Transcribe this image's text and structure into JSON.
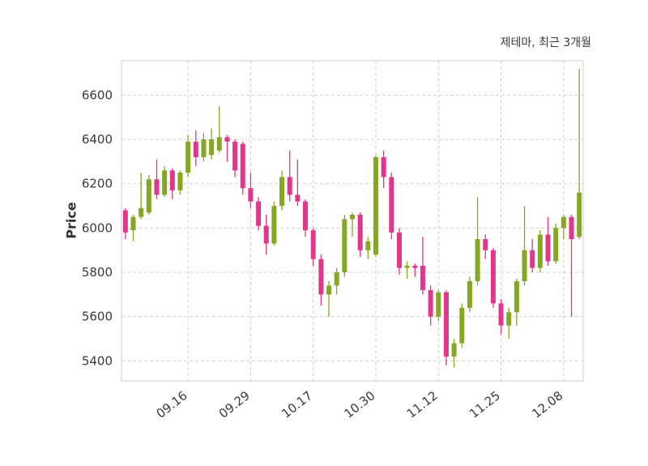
{
  "chart_data": {
    "type": "candlestick",
    "title": "제테마, 최근 3개월",
    "ylabel": "Price",
    "ylim": [
      5310,
      6755
    ],
    "y_ticks": [
      5400,
      5600,
      5800,
      6000,
      6200,
      6400,
      6600
    ],
    "x_ticks": [
      {
        "index": 8,
        "label": "09.16"
      },
      {
        "index": 16,
        "label": "09.29"
      },
      {
        "index": 24,
        "label": "10.17"
      },
      {
        "index": 32,
        "label": "10.30"
      },
      {
        "index": 40,
        "label": "11.12"
      },
      {
        "index": 48,
        "label": "11.25"
      },
      {
        "index": 56,
        "label": "12.08"
      }
    ],
    "grid": true,
    "up_color": "#84a821",
    "down_color": "#e0368c",
    "grid_color": "#d0d0d0",
    "spine_color": "#cccccc",
    "tick_color": "#3a3a3a",
    "candles": [
      [
        6080,
        6090,
        5950,
        5980
      ],
      [
        5990,
        6060,
        5940,
        6050
      ],
      [
        6050,
        6250,
        6040,
        6090
      ],
      [
        6070,
        6240,
        6060,
        6220
      ],
      [
        6220,
        6310,
        6130,
        6150
      ],
      [
        6150,
        6280,
        6140,
        6260
      ],
      [
        6260,
        6270,
        6130,
        6170
      ],
      [
        6170,
        6260,
        6150,
        6250
      ],
      [
        6250,
        6420,
        6230,
        6390
      ],
      [
        6390,
        6440,
        6280,
        6320
      ],
      [
        6320,
        6430,
        6300,
        6400
      ],
      [
        6330,
        6450,
        6310,
        6400
      ],
      [
        6350,
        6550,
        6340,
        6410
      ],
      [
        6410,
        6420,
        6300,
        6390
      ],
      [
        6390,
        6400,
        6230,
        6260
      ],
      [
        6380,
        6390,
        6150,
        6180
      ],
      [
        6180,
        6250,
        6090,
        6120
      ],
      [
        6120,
        6140,
        5990,
        6010
      ],
      [
        6010,
        6060,
        5880,
        5930
      ],
      [
        5930,
        6120,
        5920,
        6100
      ],
      [
        6100,
        6260,
        6080,
        6230
      ],
      [
        6230,
        6350,
        6120,
        6150
      ],
      [
        6150,
        6310,
        6100,
        6120
      ],
      [
        6120,
        6130,
        5960,
        5990
      ],
      [
        5990,
        6000,
        5830,
        5860
      ],
      [
        5860,
        5880,
        5650,
        5700
      ],
      [
        5700,
        5760,
        5600,
        5740
      ],
      [
        5740,
        5820,
        5700,
        5800
      ],
      [
        5800,
        6060,
        5780,
        6040
      ],
      [
        6040,
        6070,
        5960,
        6060
      ],
      [
        6060,
        6070,
        5870,
        5900
      ],
      [
        5900,
        5960,
        5860,
        5940
      ],
      [
        5880,
        6330,
        5870,
        6320
      ],
      [
        6320,
        6350,
        6180,
        6230
      ],
      [
        6230,
        6250,
        5950,
        5980
      ],
      [
        5980,
        6000,
        5790,
        5820
      ],
      [
        5820,
        5850,
        5770,
        5830
      ],
      [
        5830,
        5840,
        5780,
        5820
      ],
      [
        5830,
        5960,
        5700,
        5720
      ],
      [
        5720,
        5740,
        5560,
        5600
      ],
      [
        5600,
        5720,
        5580,
        5710
      ],
      [
        5710,
        5720,
        5380,
        5420
      ],
      [
        5420,
        5500,
        5370,
        5480
      ],
      [
        5480,
        5660,
        5460,
        5640
      ],
      [
        5640,
        5780,
        5620,
        5760
      ],
      [
        5760,
        6140,
        5740,
        5950
      ],
      [
        5950,
        5970,
        5860,
        5900
      ],
      [
        5900,
        5910,
        5640,
        5660
      ],
      [
        5660,
        5680,
        5520,
        5560
      ],
      [
        5560,
        5640,
        5500,
        5620
      ],
      [
        5620,
        5770,
        5560,
        5760
      ],
      [
        5760,
        6100,
        5740,
        5900
      ],
      [
        5900,
        5950,
        5800,
        5820
      ],
      [
        5820,
        5990,
        5800,
        5970
      ],
      [
        5970,
        6050,
        5830,
        5850
      ],
      [
        5850,
        6020,
        5840,
        6000
      ],
      [
        6000,
        6060,
        5950,
        6050
      ],
      [
        6050,
        6060,
        5600,
        5950
      ],
      [
        5960,
        6720,
        5950,
        6160
      ]
    ]
  }
}
